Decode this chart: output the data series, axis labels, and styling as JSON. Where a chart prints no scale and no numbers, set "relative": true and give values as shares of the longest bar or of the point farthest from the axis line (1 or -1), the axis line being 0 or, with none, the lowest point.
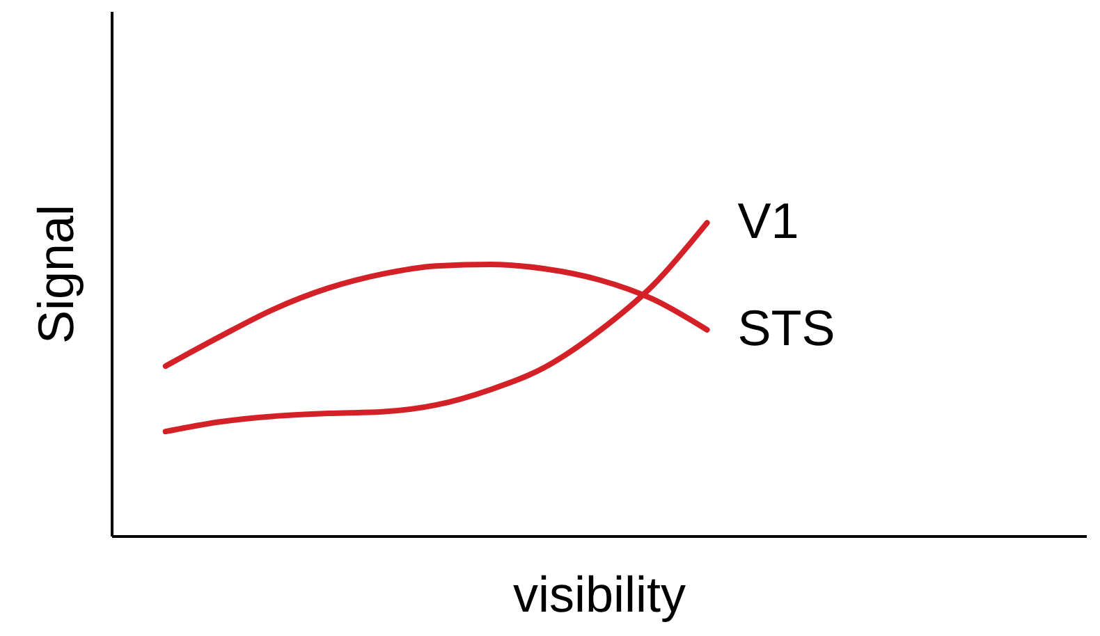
{
  "chart_data": {
    "type": "line",
    "relative": true,
    "xlabel": "visibility",
    "ylabel": "Signal",
    "marker": "none",
    "line_style": "solid",
    "grid": false,
    "categories": [
      null,
      null,
      null,
      null,
      null,
      null,
      null,
      null,
      null,
      null,
      null,
      null,
      null,
      null,
      null,
      null,
      null
    ],
    "series": [
      {
        "name": "V1",
        "color": "#d42127",
        "values": [
          0.333,
          0.364,
          0.382,
          0.391,
          0.396,
          0.418,
          0.467,
          0.538,
          0.653,
          0.8,
          1,
          null,
          null,
          null,
          null,
          null,
          null
        ]
      },
      {
        "name": "STS",
        "color": "#d42127",
        "values": [
          0.542,
          0.636,
          0.724,
          0.791,
          0.836,
          0.862,
          0.867,
          0.853,
          0.818,
          0.756,
          0.658,
          null,
          null,
          null,
          null,
          null,
          null
        ]
      }
    ]
  }
}
